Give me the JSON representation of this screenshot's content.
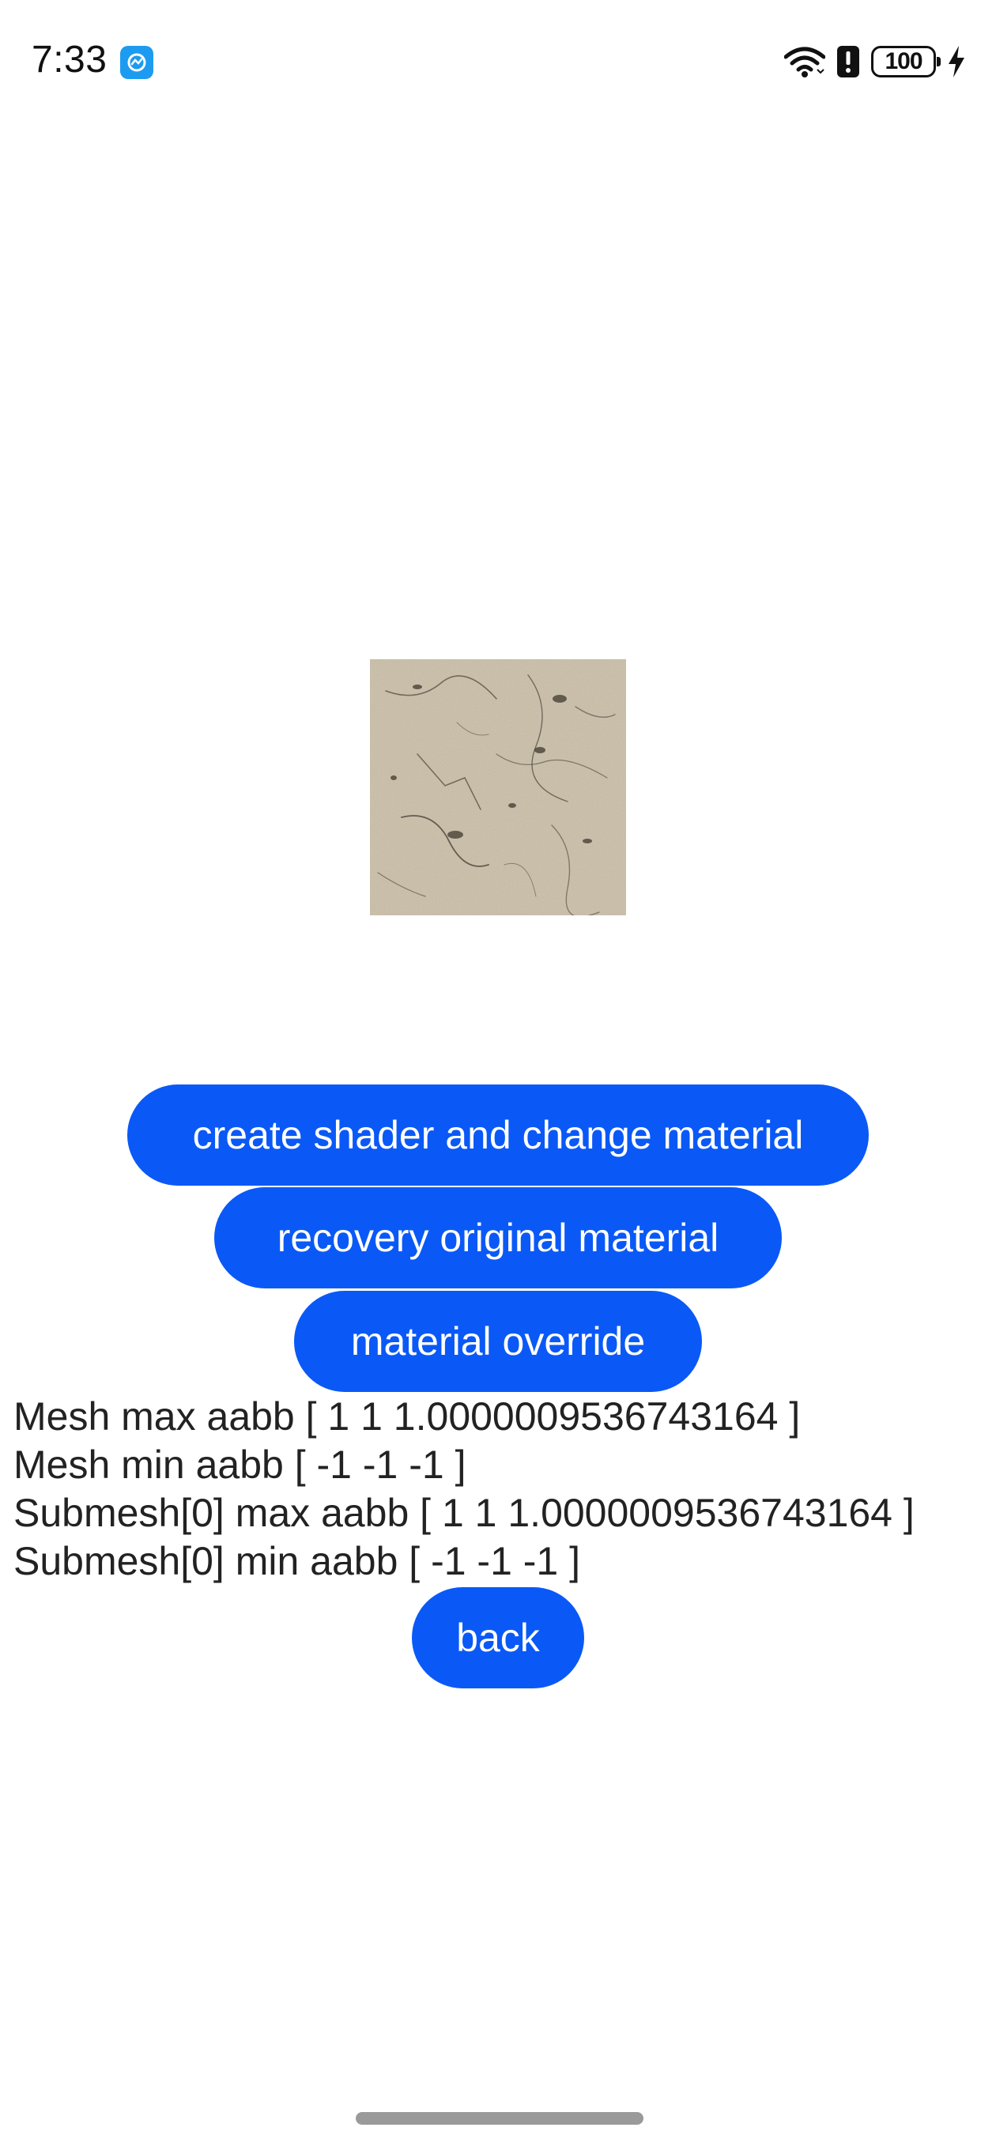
{
  "status_bar": {
    "time": "7:33",
    "battery_level": "100",
    "icons": [
      "app-indicator-icon",
      "wifi-icon",
      "alert-icon",
      "battery-icon",
      "charging-icon"
    ]
  },
  "texture": {
    "description_icon": "stone-texture-image",
    "colors": {
      "base": "#cfc3ae",
      "crack": "#5a5246"
    }
  },
  "buttons": {
    "create_shader": "create shader and change material",
    "recovery": "recovery original material",
    "override": "material override",
    "back": "back"
  },
  "info": {
    "mesh_max": "Mesh  max aabb [ 1 1 1.0000009536743164 ]",
    "mesh_min": "Mesh  min aabb [ -1 -1 -1 ]",
    "submesh_max": "Submesh[0]  max aabb [ 1 1 1.0000009536743164 ]",
    "submesh_min": "Submesh[0]  min aabb [ -1 -1 -1 ]"
  },
  "colors": {
    "accent": "#0a59f7",
    "text": "#222222",
    "background": "#ffffff"
  }
}
